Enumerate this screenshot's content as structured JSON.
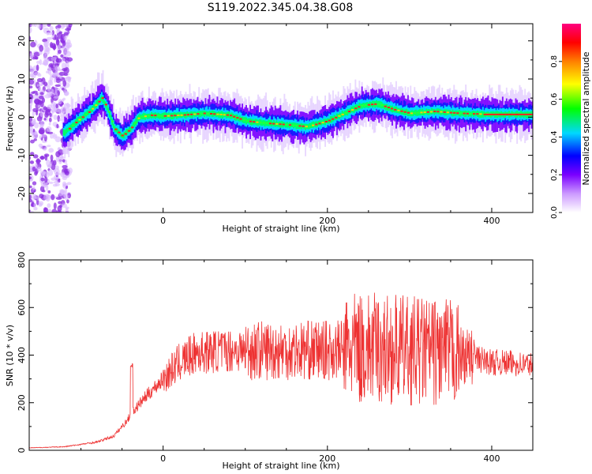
{
  "page_title": "S119.2022.345.04.38.G08",
  "chart_data": [
    {
      "type": "heatmap",
      "xlabel": "Height of straight line (km)",
      "ylabel": "Frequency (Hz)",
      "xlim": [
        -163,
        450
      ],
      "ylim": [
        -25,
        24.5
      ],
      "x_ticks": [
        0,
        200,
        400
      ],
      "y_ticks": [
        -20,
        -10,
        0,
        10,
        20
      ],
      "grid": false,
      "colorbar": {
        "label": "Normalized spectral amplitude",
        "range": [
          0,
          1
        ],
        "ticks": [
          0.0,
          0.2,
          0.4,
          0.6,
          0.8
        ],
        "tick_labels": [
          "0.0",
          "0.2",
          "0.4",
          "0.6",
          "0.8"
        ],
        "colors": [
          "#ffffff",
          "#cc99ff",
          "#7a00ff",
          "#0000ff",
          "#00d8ff",
          "#00ff00",
          "#ffff00",
          "#ff8000",
          "#ff0000",
          "#ff0080"
        ]
      },
      "ridge": {
        "x": [
          -120,
          -105,
          -90,
          -75,
          -68,
          -60,
          -50,
          -40,
          -30,
          -15,
          0,
          20,
          50,
          80,
          100,
          120,
          150,
          175,
          200,
          220,
          240,
          260,
          280,
          300,
          330,
          360,
          400,
          450
        ],
        "y": [
          -4,
          -1,
          1.5,
          5,
          2,
          -3,
          -5,
          -3,
          0,
          0.5,
          0.3,
          0.5,
          1,
          0.5,
          -1,
          -1.5,
          -2,
          -2.5,
          -1,
          1,
          3,
          3.5,
          2,
          1,
          1.5,
          1,
          0.7,
          0.7
        ]
      }
    },
    {
      "type": "line",
      "xlabel": "Height of straight line (km)",
      "ylabel": "SNR (10 * v/v)",
      "xlim": [
        -163,
        450
      ],
      "ylim": [
        0,
        800
      ],
      "x_ticks": [
        0,
        200,
        400
      ],
      "y_ticks": [
        0,
        200,
        400,
        600,
        800
      ],
      "grid": false,
      "color": "#ee3333",
      "envelope": {
        "x": [
          -163,
          -120,
          -80,
          -60,
          -45,
          -35,
          -20,
          0,
          20,
          40,
          80,
          150,
          200,
          250,
          300,
          350,
          400,
          450
        ],
        "y": [
          10,
          15,
          35,
          60,
          120,
          170,
          230,
          300,
          370,
          410,
          420,
          420,
          420,
          430,
          420,
          410,
          370,
          360
        ]
      }
    }
  ]
}
